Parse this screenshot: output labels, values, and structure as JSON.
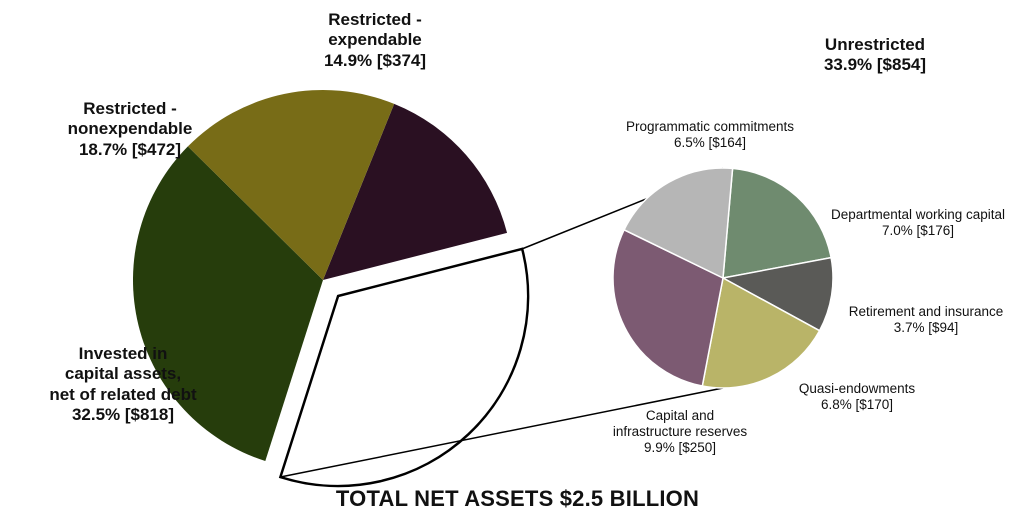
{
  "chart_data": {
    "type": "pie",
    "title": "TOTAL NET ASSETS $2.5 BILLION",
    "main_pie": {
      "slices": [
        {
          "name_lines": [
            "Restricted -",
            "expendable"
          ],
          "value_text": "14.9% [$374]",
          "percent": 14.9,
          "amount": 374,
          "color": "#2a1022"
        },
        {
          "name_lines": [
            "Unrestricted"
          ],
          "value_text": "33.9% [$854]",
          "percent": 33.9,
          "amount": 854,
          "color": "#ffffff",
          "exploded": true
        },
        {
          "name_lines": [
            "Invested in",
            "capital assets,",
            "net of related debt"
          ],
          "value_text": "32.5% [$818]",
          "percent": 32.5,
          "amount": 818,
          "color": "#263d0c"
        },
        {
          "name_lines": [
            "Restricted -",
            "nonexpendable"
          ],
          "value_text": "18.7% [$472]",
          "percent": 18.7,
          "amount": 472,
          "color": "#786c17"
        }
      ]
    },
    "breakdown_pie": {
      "of": "Unrestricted",
      "slices": [
        {
          "name_lines": [
            "Departmental working capital"
          ],
          "value_text": "7.0% [$176]",
          "percent": 7.0,
          "amount": 176,
          "color": "#6f8b6f"
        },
        {
          "name_lines": [
            "Retirement and insurance"
          ],
          "value_text": "3.7% [$94]",
          "percent": 3.7,
          "amount": 94,
          "color": "#5a5a57"
        },
        {
          "name_lines": [
            "Quasi-endowments"
          ],
          "value_text": "6.8% [$170]",
          "percent": 6.8,
          "amount": 170,
          "color": "#b9b468"
        },
        {
          "name_lines": [
            "Capital and",
            "infrastructure reserves"
          ],
          "value_text": "9.9% [$250]",
          "percent": 9.9,
          "amount": 250,
          "color": "#7c5a72"
        },
        {
          "name_lines": [
            "Programmatic commitments"
          ],
          "value_text": "6.5% [$164]",
          "percent": 6.5,
          "amount": 164,
          "color": "#b6b6b6"
        }
      ]
    }
  }
}
